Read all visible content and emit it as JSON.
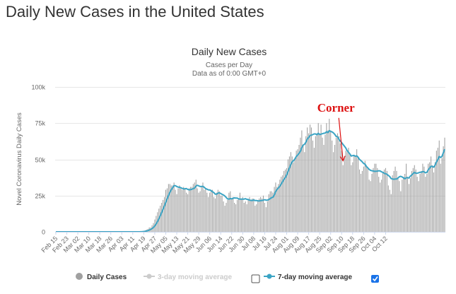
{
  "page": {
    "title": "Daily New Cases in the United States"
  },
  "chart_data": {
    "type": "bar",
    "title": "Daily New Cases",
    "subtitle": "Cases per Day",
    "subtitle2": "Data as of 0:00 GMT+0",
    "xlabel": "",
    "ylabel": "Novel Coronavirus Daily Cases",
    "ylim": [
      0,
      100000
    ],
    "y_ticks": [
      0,
      25000,
      50000,
      75000,
      100000
    ],
    "y_tick_labels": [
      "0",
      "25k",
      "50k",
      "75k",
      "100k"
    ],
    "grid": "horizontal",
    "x_start_label": "Feb 15",
    "x_tick_every_days": 8,
    "x_tick_labels": [
      "Feb 15",
      "Feb 23",
      "Mar 02",
      "Mar 10",
      "Mar 18",
      "Mar 26",
      "Apr 03",
      "Apr 11",
      "Apr 19",
      "Apr 27",
      "May 05",
      "May 13",
      "May 21",
      "May 29",
      "Jun 06",
      "Jun 14",
      "Jun 22",
      "Jun 30",
      "Jul 08",
      "Jul 16",
      "Jul 24",
      "Aug 01",
      "Aug 09",
      "Aug 17",
      "Aug 25",
      "Sep 02",
      "Sep 10",
      "Sep 18",
      "Sep 26",
      "Oct 04",
      "Oct 12"
    ],
    "bar_color": "#a0a0a0",
    "line_color": "#3ba4c4",
    "series": [
      {
        "name": "Daily Cases",
        "kind": "bar",
        "values": [
          0,
          0,
          0,
          0,
          0,
          0,
          0,
          0,
          0,
          0,
          0,
          0,
          0,
          0,
          0,
          0,
          0,
          0,
          0,
          0,
          0,
          0,
          0,
          0,
          0,
          0,
          0,
          0,
          0,
          0,
          0,
          0,
          0,
          0,
          0,
          0,
          0,
          0,
          0,
          0,
          0,
          0,
          0,
          0,
          0,
          0,
          0,
          0,
          0,
          0,
          0,
          0,
          0,
          0,
          0,
          0,
          0,
          0,
          0,
          0,
          0,
          100,
          200,
          300,
          600,
          1000,
          1500,
          2000,
          3000,
          3000,
          4500,
          6000,
          8500,
          11000,
          13500,
          16000,
          18000,
          20000,
          22000,
          24000,
          29000,
          30000,
          33000,
          33000,
          32000,
          32000,
          34000,
          29000,
          26000,
          30000,
          32000,
          30000,
          29000,
          31000,
          30000,
          27000,
          26000,
          30000,
          31000,
          31000,
          33000,
          34000,
          36000,
          30000,
          27000,
          28000,
          31000,
          34000,
          29000,
          30000,
          27000,
          24000,
          27000,
          28000,
          29000,
          24000,
          23000,
          27000,
          29000,
          28000,
          25000,
          25000,
          21000,
          18000,
          20000,
          22000,
          27000,
          28000,
          23000,
          24000,
          20000,
          19000,
          22000,
          23000,
          27000,
          23000,
          24000,
          20000,
          21000,
          19000,
          22000,
          24000,
          22000,
          23000,
          23000,
          18000,
          19000,
          21000,
          23000,
          24000,
          23000,
          25000,
          20000,
          17000,
          21000,
          26000,
          28000,
          28000,
          27000,
          31000,
          34000,
          31000,
          33000,
          36000,
          38000,
          39000,
          42000,
          43000,
          44000,
          50000,
          52000,
          55000,
          52000,
          48000,
          51000,
          56000,
          57000,
          60000,
          65000,
          70000,
          60000,
          55000,
          66000,
          72000,
          68000,
          74000,
          72000,
          63000,
          58000,
          66000,
          68000,
          75000,
          68000,
          74000,
          65000,
          60000,
          67000,
          75000,
          70000,
          78000,
          70000,
          63000,
          55000,
          60000,
          65000,
          68000,
          66000,
          61000,
          56000,
          46000,
          52000,
          56000,
          55000,
          58000,
          53000,
          46000,
          48000,
          53000,
          52000,
          57000,
          51000,
          43000,
          40000,
          42000,
          45000,
          49000,
          46000,
          44000,
          36000,
          35000,
          40000,
          44000,
          47000,
          47000,
          44000,
          38000,
          34000,
          36000,
          41000,
          43000,
          44000,
          42000,
          32000,
          29000,
          26000,
          39000,
          42000,
          45000,
          42000,
          37000,
          35000,
          28000,
          36000,
          38000,
          40000,
          47000,
          38000,
          33000,
          37000,
          42000,
          44000,
          46000,
          43000,
          38000,
          35000,
          40000,
          42000,
          47000,
          45000,
          38000,
          40000,
          47000,
          48000,
          52000,
          46000,
          41000,
          48000,
          56000,
          58000,
          63000,
          47000,
          51000,
          59000,
          65000
        ]
      },
      {
        "name": "3-day moving average",
        "kind": "line",
        "visible": false
      },
      {
        "name": "7-day moving average",
        "kind": "line",
        "visible": true
      }
    ],
    "annotations": [
      {
        "text": "Corner",
        "color": "#dd1111",
        "x": "Sep 11",
        "y_text": 83000,
        "arrow_to_y": 49000
      }
    ],
    "legend": {
      "placement": "bottom-center",
      "items": [
        {
          "label": "Daily Cases",
          "state": "active",
          "checkbox": null
        },
        {
          "label": "3-day moving average",
          "state": "inactive",
          "checkbox": false
        },
        {
          "label": "7-day moving average",
          "state": "active",
          "checkbox": true
        }
      ]
    }
  }
}
